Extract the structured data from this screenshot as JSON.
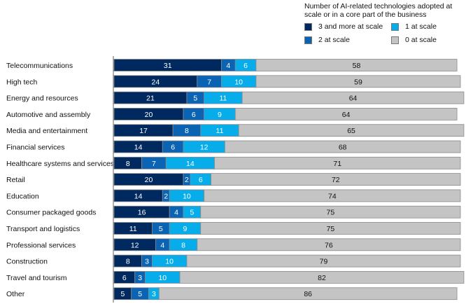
{
  "chart_data": {
    "type": "bar",
    "orientation": "horizontal",
    "stacked": true,
    "legend_title": "Number of AI-related technologies adopted at scale or in a core part of the business",
    "legend_position": "top-right",
    "categories": [
      "Telecommunications",
      "High tech",
      "Energy and resources",
      "Automotive and assembly",
      "Media and entertainment",
      "Financial services",
      "Healthcare systems and services",
      "Retail",
      "Education",
      "Consumer packaged goods",
      "Transport and logistics",
      "Professional services",
      "Construction",
      "Travel and tourism",
      "Other"
    ],
    "series": [
      {
        "name": "3 and more at scale",
        "color": "#002960",
        "label_color": "#ffffff",
        "values": [
          31,
          24,
          21,
          20,
          17,
          14,
          8,
          20,
          14,
          16,
          11,
          12,
          8,
          6,
          5
        ]
      },
      {
        "name": "2 at scale",
        "color": "#0b63b3",
        "label_color": "#ffffff",
        "values": [
          4,
          7,
          5,
          6,
          8,
          6,
          7,
          2,
          2,
          4,
          5,
          4,
          3,
          3,
          5
        ]
      },
      {
        "name": "1 at scale",
        "color": "#06adea",
        "label_color": "#ffffff",
        "values": [
          6,
          10,
          11,
          9,
          11,
          12,
          14,
          6,
          10,
          5,
          9,
          8,
          10,
          10,
          3
        ]
      },
      {
        "name": "0 at scale",
        "color": "#c4c4c4",
        "label_color": "#111111",
        "values": [
          58,
          59,
          64,
          64,
          65,
          68,
          71,
          72,
          74,
          75,
          75,
          76,
          79,
          82,
          86
        ]
      }
    ],
    "grid": false
  }
}
